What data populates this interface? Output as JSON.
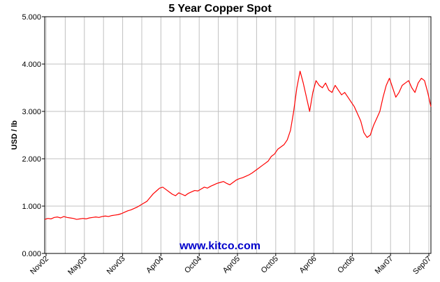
{
  "chart_data": {
    "type": "line",
    "title": "5 Year Copper Spot",
    "ylabel": "USD / lb",
    "xlabel": "",
    "ylim": [
      0,
      5
    ],
    "y_ticks": [
      "0.000",
      "1.000",
      "2.000",
      "3.000",
      "4.000",
      "5.000"
    ],
    "x_ticks": [
      "Nov02",
      "May03",
      "Nov03",
      "Apr04",
      "Oct04",
      "Apr05",
      "Oct05",
      "Apr06",
      "Oct06",
      "Mar07",
      "Sep07"
    ],
    "grid": true,
    "watermark": "www.kitco.com",
    "colors": {
      "series": "#ff0000",
      "grid": "#c0c0c0",
      "frame": "#000000",
      "watermark": "#0000cc"
    },
    "series": [
      {
        "values": [
          0.72,
          0.74,
          0.73,
          0.76,
          0.77,
          0.75,
          0.78,
          0.76,
          0.75,
          0.74,
          0.72,
          0.73,
          0.74,
          0.73,
          0.75,
          0.76,
          0.77,
          0.76,
          0.78,
          0.79,
          0.78,
          0.8,
          0.81,
          0.82,
          0.84,
          0.87,
          0.9,
          0.92,
          0.95,
          0.98,
          1.02,
          1.06,
          1.1,
          1.18,
          1.26,
          1.32,
          1.38,
          1.4,
          1.35,
          1.3,
          1.25,
          1.22,
          1.28,
          1.25,
          1.22,
          1.27,
          1.3,
          1.33,
          1.32,
          1.36,
          1.4,
          1.38,
          1.42,
          1.45,
          1.48,
          1.5,
          1.52,
          1.48,
          1.45,
          1.5,
          1.55,
          1.58,
          1.6,
          1.63,
          1.66,
          1.7,
          1.75,
          1.8,
          1.85,
          1.9,
          1.95,
          2.05,
          2.1,
          2.2,
          2.25,
          2.3,
          2.4,
          2.6,
          3.0,
          3.5,
          3.85,
          3.6,
          3.3,
          3.0,
          3.4,
          3.65,
          3.55,
          3.5,
          3.6,
          3.45,
          3.4,
          3.55,
          3.45,
          3.35,
          3.4,
          3.3,
          3.2,
          3.1,
          2.95,
          2.8,
          2.55,
          2.45,
          2.5,
          2.7,
          2.85,
          3.0,
          3.3,
          3.55,
          3.7,
          3.5,
          3.3,
          3.4,
          3.55,
          3.6,
          3.65,
          3.5,
          3.4,
          3.6,
          3.7,
          3.65,
          3.4,
          3.1
        ]
      }
    ]
  }
}
